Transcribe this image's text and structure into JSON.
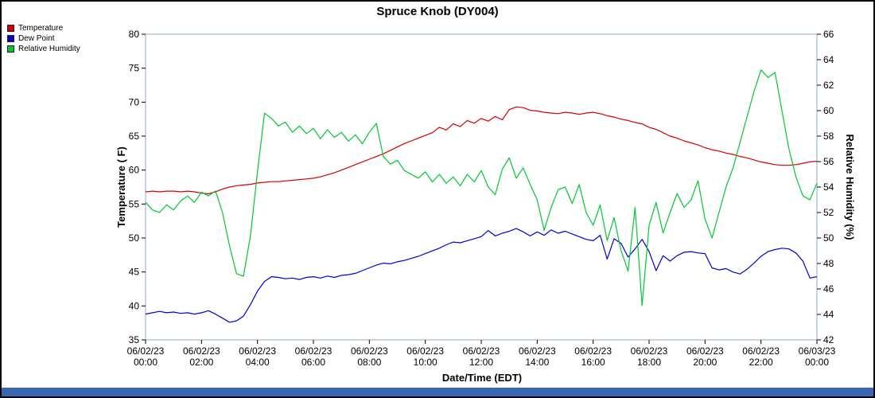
{
  "colors": {
    "frame": "#8fa8c8",
    "footer_bar": "#3a67b1",
    "temperature": "#d40000",
    "dew_point": "#0000d4",
    "relative_humidity": "#00c832"
  },
  "chart_data": {
    "type": "line",
    "title": "Spruce Knob (DY004)",
    "xlabel": "Date/Time (EDT)",
    "ylabel_left": "Temperature ( F)",
    "ylabel_right": "Relative Humidity (%)",
    "grid": false,
    "legend_position": "top-left",
    "left_axis": {
      "min": 35,
      "max": 80,
      "step": 5
    },
    "right_axis": {
      "min": 42,
      "max": 66,
      "step": 2
    },
    "x_axis": {
      "min": 0,
      "max": 24,
      "tick_step_hours": 2,
      "tick_labels": [
        {
          "date": "06/02/23",
          "time": "00:00"
        },
        {
          "date": "06/02/23",
          "time": "02:00"
        },
        {
          "date": "06/02/23",
          "time": "04:00"
        },
        {
          "date": "06/02/23",
          "time": "06:00"
        },
        {
          "date": "06/02/23",
          "time": "08:00"
        },
        {
          "date": "06/02/23",
          "time": "10:00"
        },
        {
          "date": "06/02/23",
          "time": "12:00"
        },
        {
          "date": "06/02/23",
          "time": "14:00"
        },
        {
          "date": "06/02/23",
          "time": "16:00"
        },
        {
          "date": "06/02/23",
          "time": "18:00"
        },
        {
          "date": "06/02/23",
          "time": "20:00"
        },
        {
          "date": "06/02/23",
          "time": "22:00"
        },
        {
          "date": "06/03/23",
          "time": "00:00"
        }
      ]
    },
    "x_hours": [
      0,
      0.25,
      0.5,
      0.75,
      1,
      1.25,
      1.5,
      1.75,
      2,
      2.25,
      2.5,
      2.75,
      3,
      3.25,
      3.5,
      3.75,
      4,
      4.25,
      4.5,
      4.75,
      5,
      5.25,
      5.5,
      5.75,
      6,
      6.25,
      6.5,
      6.75,
      7,
      7.25,
      7.5,
      7.75,
      8,
      8.25,
      8.5,
      8.75,
      9,
      9.25,
      9.5,
      9.75,
      10,
      10.25,
      10.5,
      10.75,
      11,
      11.25,
      11.5,
      11.75,
      12,
      12.25,
      12.5,
      12.75,
      13,
      13.25,
      13.5,
      13.75,
      14,
      14.25,
      14.5,
      14.75,
      15,
      15.25,
      15.5,
      15.75,
      16,
      16.25,
      16.5,
      16.75,
      17,
      17.25,
      17.5,
      17.75,
      18,
      18.25,
      18.5,
      18.75,
      19,
      19.25,
      19.5,
      19.75,
      20,
      20.25,
      20.5,
      20.75,
      21,
      21.25,
      21.5,
      21.75,
      22,
      22.25,
      22.5,
      22.75,
      23,
      23.25,
      23.5,
      23.75,
      24
    ],
    "series": [
      {
        "name": "Temperature",
        "axis": "left",
        "unit": "F",
        "color": "#d40000",
        "values": [
          56.8,
          56.9,
          56.8,
          56.9,
          56.9,
          56.8,
          56.9,
          56.8,
          56.6,
          56.5,
          56.8,
          57.2,
          57.5,
          57.7,
          57.8,
          57.9,
          58.1,
          58.2,
          58.3,
          58.3,
          58.4,
          58.5,
          58.6,
          58.7,
          58.8,
          59.0,
          59.3,
          59.6,
          60.0,
          60.4,
          60.8,
          61.2,
          61.6,
          62.0,
          62.4,
          62.9,
          63.4,
          63.9,
          64.3,
          64.7,
          65.1,
          65.5,
          66.3,
          65.9,
          66.8,
          66.4,
          67.3,
          66.9,
          67.6,
          67.2,
          67.9,
          67.4,
          68.9,
          69.3,
          69.2,
          68.8,
          68.7,
          68.5,
          68.4,
          68.3,
          68.5,
          68.4,
          68.2,
          68.4,
          68.5,
          68.3,
          68.0,
          67.8,
          67.5,
          67.3,
          67.0,
          66.8,
          66.3,
          66.0,
          65.5,
          65.0,
          64.7,
          64.3,
          64.0,
          63.7,
          63.3,
          63.0,
          62.8,
          62.5,
          62.3,
          62.0,
          61.8,
          61.5,
          61.2,
          61.0,
          60.8,
          60.7,
          60.7,
          60.8,
          61.0,
          61.2,
          61.3
        ]
      },
      {
        "name": "Dew Point",
        "axis": "left",
        "unit": "F",
        "color": "#0000d4",
        "values": [
          38.8,
          39.0,
          39.2,
          39.0,
          39.1,
          38.9,
          39.0,
          38.8,
          39.0,
          39.3,
          38.8,
          38.2,
          37.6,
          37.8,
          38.5,
          40.2,
          42.2,
          43.6,
          44.3,
          44.2,
          44.0,
          44.1,
          43.9,
          44.2,
          44.3,
          44.1,
          44.4,
          44.2,
          44.5,
          44.6,
          44.8,
          45.2,
          45.6,
          46.0,
          46.3,
          46.2,
          46.5,
          46.7,
          47.0,
          47.3,
          47.7,
          48.1,
          48.5,
          49.0,
          49.4,
          49.3,
          49.6,
          49.9,
          50.2,
          51.1,
          50.3,
          50.7,
          51.0,
          51.4,
          50.9,
          50.3,
          50.9,
          50.4,
          51.2,
          50.7,
          51.0,
          50.6,
          50.2,
          49.8,
          49.6,
          50.4,
          46.9,
          49.9,
          49.2,
          47.2,
          48.4,
          49.8,
          48.0,
          45.2,
          47.4,
          46.6,
          47.4,
          47.9,
          48.0,
          47.8,
          47.7,
          45.6,
          45.3,
          45.5,
          45.0,
          44.7,
          45.4,
          46.3,
          47.3,
          48.0,
          48.3,
          48.5,
          48.4,
          47.8,
          46.6,
          44.1,
          44.3
        ]
      },
      {
        "name": "Relative Humidity",
        "axis": "right",
        "unit": "%",
        "color": "#00c832",
        "values": [
          52.8,
          52.2,
          52.0,
          52.6,
          52.2,
          52.9,
          53.3,
          52.8,
          53.6,
          53.3,
          53.7,
          52.0,
          49.4,
          47.2,
          47.0,
          50.2,
          55.2,
          59.8,
          59.4,
          58.8,
          59.1,
          58.3,
          58.8,
          58.2,
          58.6,
          57.8,
          58.5,
          57.9,
          58.3,
          57.6,
          58.1,
          57.4,
          58.3,
          59.0,
          56.4,
          55.8,
          56.1,
          55.3,
          55.0,
          54.7,
          55.2,
          54.4,
          55.0,
          54.3,
          54.8,
          54.1,
          55.0,
          54.4,
          55.3,
          54.0,
          53.4,
          55.4,
          56.3,
          54.7,
          55.5,
          54.2,
          53.0,
          50.6,
          52.4,
          53.8,
          54.0,
          52.7,
          54.2,
          52.0,
          51.0,
          52.6,
          49.8,
          51.6,
          49.0,
          47.4,
          52.4,
          44.7,
          51.0,
          52.8,
          50.4,
          52.0,
          53.5,
          52.4,
          53.0,
          54.5,
          51.5,
          50.0,
          52.0,
          54.0,
          55.5,
          57.5,
          59.5,
          61.5,
          63.2,
          62.6,
          63.0,
          60.0,
          57.0,
          54.8,
          53.3,
          53.0,
          54.3
        ]
      }
    ]
  }
}
